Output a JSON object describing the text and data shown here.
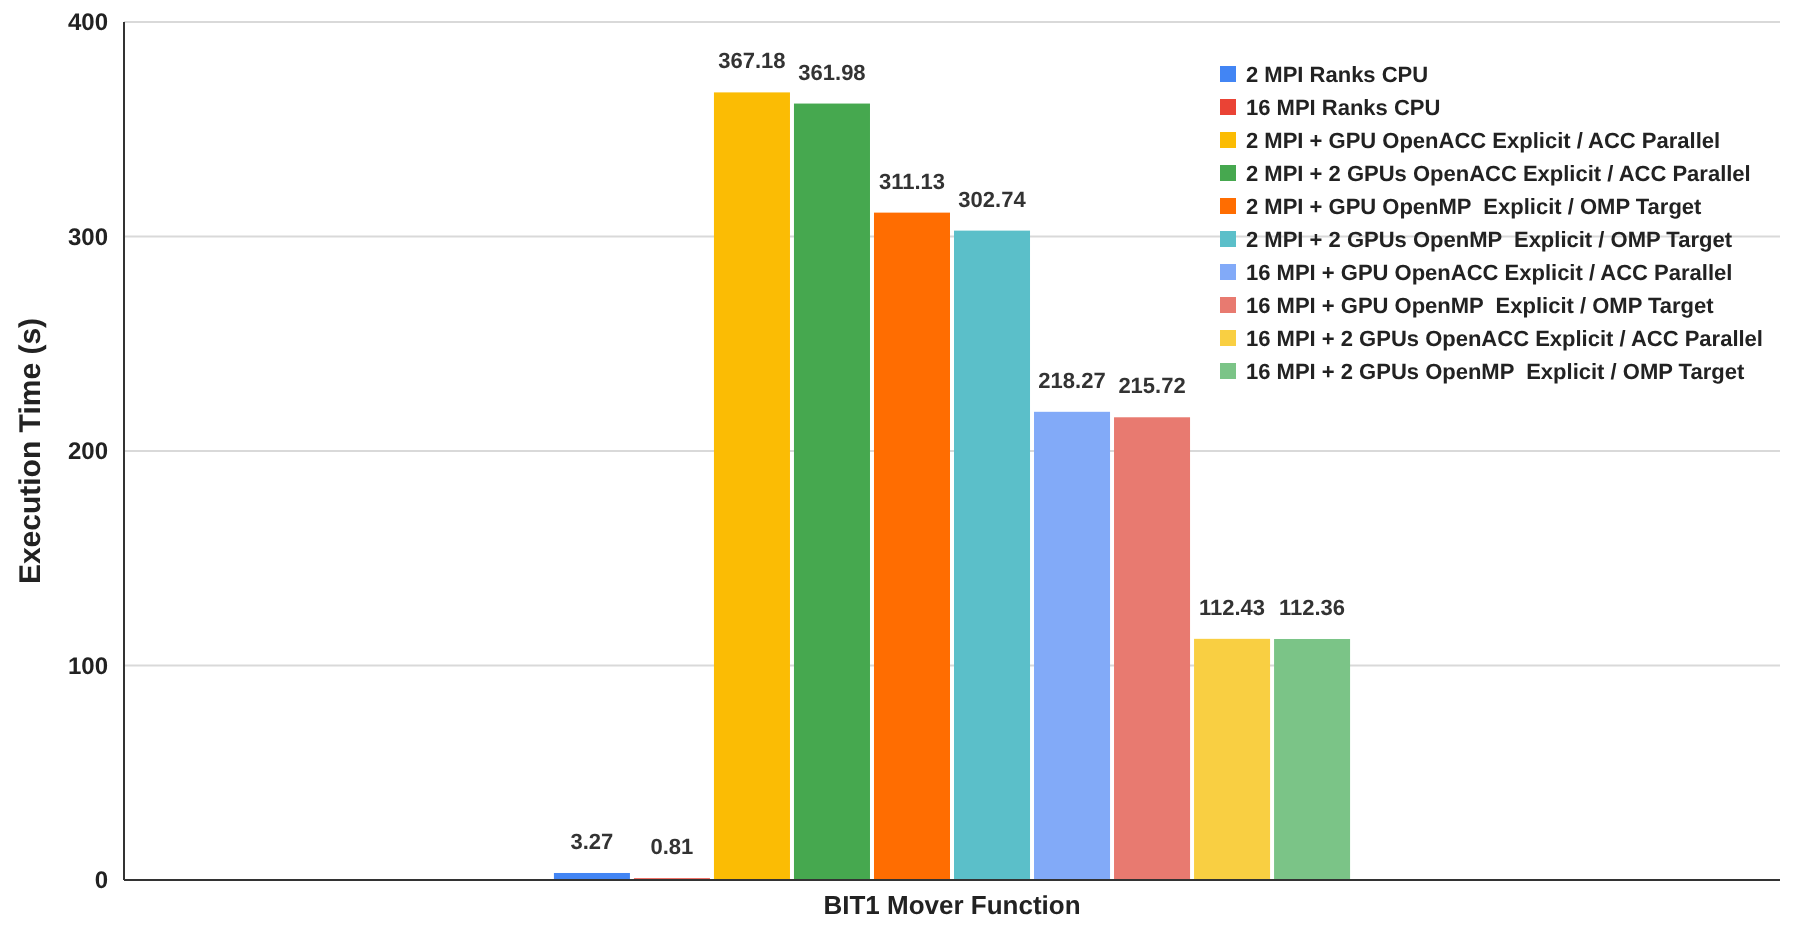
{
  "chart_data": {
    "type": "bar",
    "categories": [
      "BIT1 Mover Function"
    ],
    "ylabel": "Execution Time (s)",
    "ylim": [
      0,
      400
    ],
    "yticks": [
      0,
      100,
      200,
      300,
      400
    ],
    "grid": "y",
    "legend": "top right",
    "data_labels": true,
    "series": [
      {
        "name": "2 MPI Ranks CPU",
        "color": "#4285f4",
        "values": [
          3.27
        ]
      },
      {
        "name": "16 MPI Ranks CPU",
        "color": "#ea4335",
        "values": [
          0.81
        ]
      },
      {
        "name": "2 MPI + GPU OpenACC Explicit / ACC Parallel",
        "color": "#fbbc04",
        "values": [
          367.18
        ]
      },
      {
        "name": "2 MPI + 2 GPUs OpenACC Explicit / ACC Parallel",
        "color": "#46a84f",
        "values": [
          361.98
        ]
      },
      {
        "name": "2 MPI + GPU OpenMP  Explicit / OMP Target",
        "color": "#ff6d01",
        "values": [
          311.13
        ]
      },
      {
        "name": "2 MPI + 2 GPUs OpenMP  Explicit / OMP Target",
        "color": "#5bbfc9",
        "values": [
          302.74
        ]
      },
      {
        "name": "16 MPI + GPU OpenACC Explicit / ACC Parallel",
        "color": "#82aaf8",
        "values": [
          218.27
        ]
      },
      {
        "name": "16 MPI + GPU OpenMP  Explicit / OMP Target",
        "color": "#e87a70",
        "values": [
          215.72
        ]
      },
      {
        "name": "16 MPI + 2 GPUs OpenACC Explicit / ACC Parallel",
        "color": "#f9cf42",
        "values": [
          112.43
        ]
      },
      {
        "name": "16 MPI + 2 GPUs OpenMP  Explicit / OMP Target",
        "color": "#7bc487",
        "values": [
          112.36
        ]
      }
    ]
  }
}
